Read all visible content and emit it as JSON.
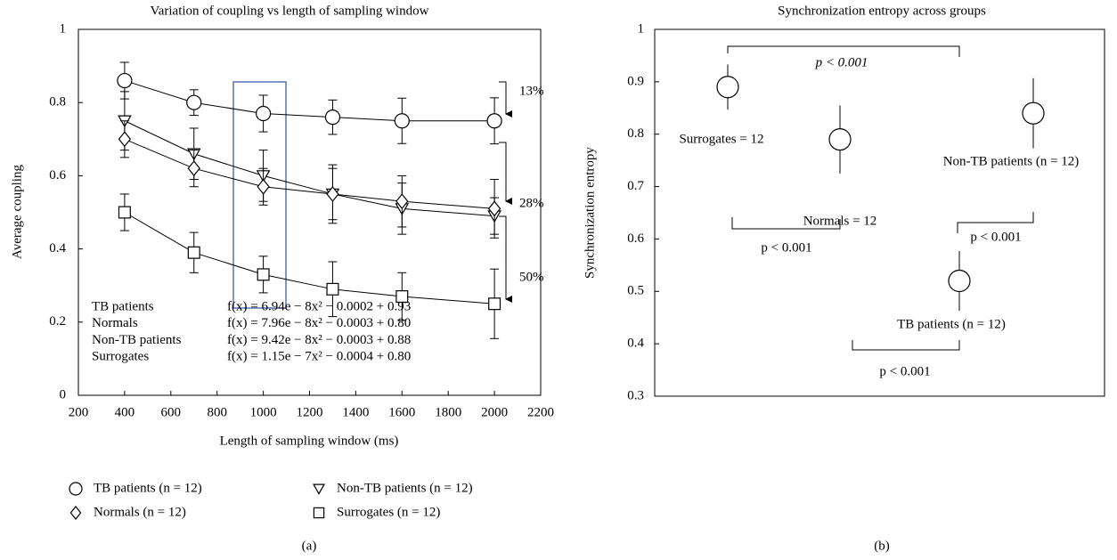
{
  "chart_data": [
    {
      "type": "line",
      "title": "Variation of coupling vs length of sampling window",
      "x_label": "Length of sampling window (ms)",
      "y_label": "Average coupling",
      "caption": "(a)",
      "x": [
        400,
        700,
        1000,
        1300,
        1600,
        2000
      ],
      "series": [
        {
          "name": "TB patients (n = 12)",
          "marker": "circle",
          "color": "#000000",
          "values": [
            0.86,
            0.8,
            0.77,
            0.76,
            0.75,
            0.75
          ],
          "errors": [
            0.05,
            0.035,
            0.05,
            0.047,
            0.062,
            0.063
          ]
        },
        {
          "name": "Non-TB patients (n = 12)",
          "marker": "triangle",
          "color": "#000000",
          "values": [
            0.75,
            0.66,
            0.6,
            0.55,
            0.51,
            0.49
          ],
          "errors": [
            0.08,
            0.07,
            0.07,
            0.07,
            0.07,
            0.05
          ]
        },
        {
          "name": "Normals (n = 12)",
          "marker": "diamond",
          "color": "#000000",
          "values": [
            0.7,
            0.62,
            0.57,
            0.55,
            0.53,
            0.51
          ],
          "errors": [
            0.05,
            0.05,
            0.05,
            0.08,
            0.07,
            0.08
          ]
        },
        {
          "name": "Surrogates (n = 12)",
          "marker": "square",
          "color": "#000000",
          "values": [
            0.5,
            0.39,
            0.33,
            0.29,
            0.27,
            0.25
          ],
          "errors": [
            0.05,
            0.055,
            0.05,
            0.075,
            0.065,
            0.095
          ]
        }
      ],
      "xlim": [
        200,
        2200
      ],
      "xticks": [
        200,
        400,
        600,
        800,
        1000,
        1200,
        1400,
        1600,
        1800,
        2000,
        2200
      ],
      "ylim": [
        0,
        1
      ],
      "yticks": [
        0,
        0.2,
        0.4,
        0.6,
        0.8,
        1
      ],
      "fits": [
        {
          "label": "TB patients",
          "formula": "f(x) = 6.94e − 8x² − 0.0002 + 0.93"
        },
        {
          "label": "Normals",
          "formula": "f(x) = 7.96e − 8x² − 0.0003 + 0.80"
        },
        {
          "label": "Non-TB patients",
          "formula": "f(x) = 9.42e − 8x² − 0.0003 + 0.88"
        },
        {
          "label": "Surrogates",
          "formula": "f(x) = 1.15e − 7x² − 0.0004 + 0.80"
        }
      ],
      "percent_labels": [
        "13%",
        "28%",
        "50%"
      ]
    },
    {
      "type": "scatter",
      "title": "Synchronization entropy across groups",
      "y_label": "Synchronization entropy",
      "caption": "(b)",
      "categories": [
        "Surrogates = 12",
        "Normals = 12",
        "Non-TB patients (n = 12)",
        "TB patients (n = 12)"
      ],
      "values": [
        0.89,
        0.79,
        0.84,
        0.52
      ],
      "errors": [
        0.043,
        0.065,
        0.067,
        0.057
      ],
      "ylim": [
        0.3,
        1
      ],
      "yticks": [
        0.3,
        0.4,
        0.5,
        0.6,
        0.7,
        0.8,
        0.9,
        1
      ],
      "p_labels": [
        "p < 0.001",
        "p < 0.001",
        "p < 0.001",
        "p < 0.001"
      ]
    }
  ]
}
